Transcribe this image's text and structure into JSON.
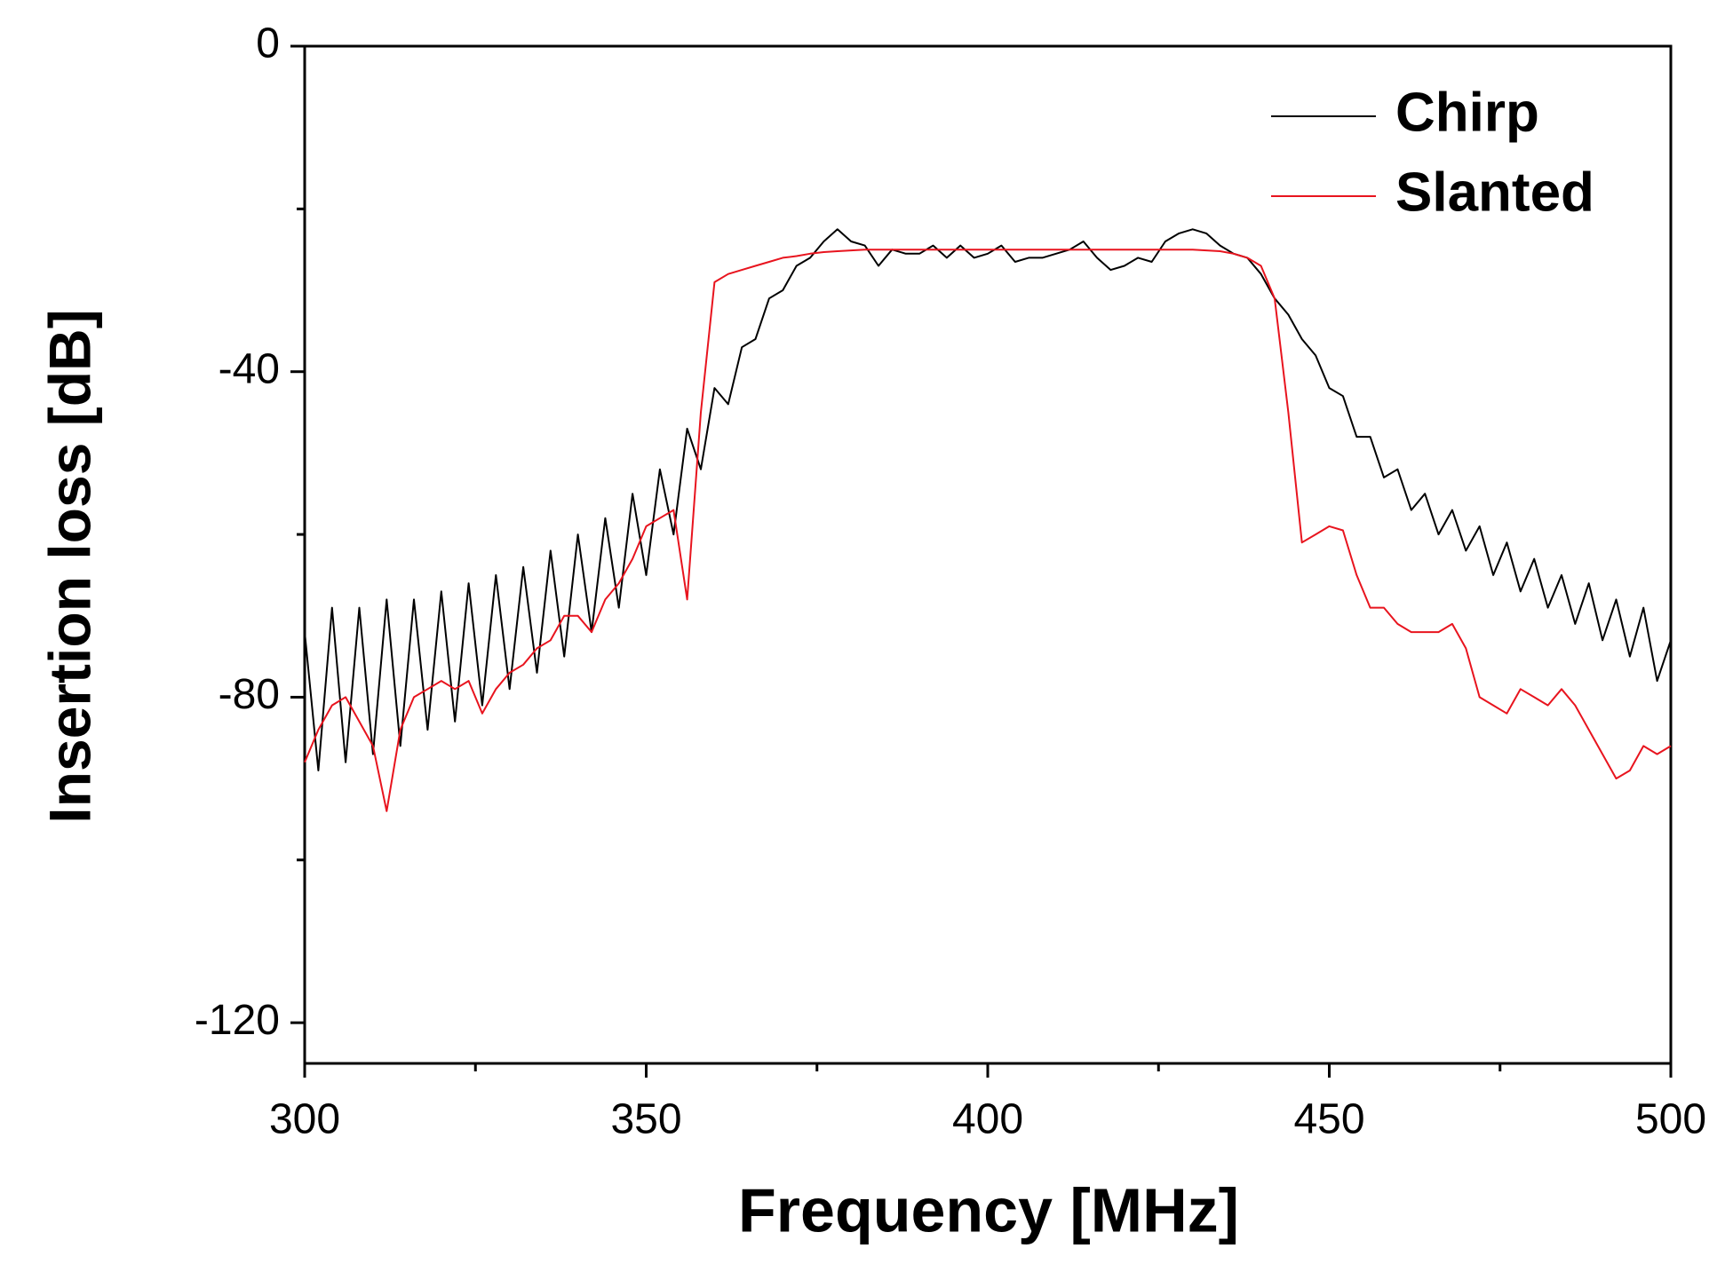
{
  "chart_data": {
    "type": "line",
    "xlabel": "Frequency [MHz]",
    "ylabel": "Insertion loss [dB]",
    "x": [
      300,
      302,
      304,
      306,
      308,
      310,
      312,
      314,
      316,
      318,
      320,
      322,
      324,
      326,
      328,
      330,
      332,
      334,
      336,
      338,
      340,
      342,
      344,
      346,
      348,
      350,
      352,
      354,
      356,
      358,
      360,
      362,
      364,
      366,
      368,
      370,
      372,
      374,
      376,
      378,
      380,
      382,
      384,
      386,
      388,
      390,
      392,
      394,
      396,
      398,
      400,
      402,
      404,
      406,
      408,
      410,
      412,
      414,
      416,
      418,
      420,
      422,
      424,
      426,
      428,
      430,
      432,
      434,
      436,
      438,
      440,
      442,
      444,
      446,
      448,
      450,
      452,
      454,
      456,
      458,
      460,
      462,
      464,
      466,
      468,
      470,
      472,
      474,
      476,
      478,
      480,
      482,
      484,
      486,
      488,
      490,
      492,
      494,
      496,
      498,
      500
    ],
    "series": [
      {
        "name": "Chirp",
        "color": "#000000",
        "values": [
          -72,
          -89,
          -69,
          -88,
          -69,
          -87,
          -68,
          -86,
          -68,
          -84,
          -67,
          -83,
          -66,
          -81,
          -65,
          -79,
          -64,
          -77,
          -62,
          -75,
          -60,
          -72,
          -58,
          -69,
          -55,
          -65,
          -52,
          -60,
          -47,
          -52,
          -42,
          -44,
          -37,
          -36,
          -31,
          -30,
          -27,
          -26,
          -24,
          -22.5,
          -24,
          -24.5,
          -27,
          -25,
          -25.5,
          -25.5,
          -24.5,
          -26,
          -24.5,
          -26,
          -25.5,
          -24.5,
          -26.5,
          -26,
          -26,
          -25.5,
          -25,
          -24,
          -26,
          -27.5,
          -27,
          -26,
          -26.5,
          -24,
          -23,
          -22.5,
          -23,
          -24.5,
          -25.5,
          -26,
          -28,
          -31,
          -33,
          -36,
          -38,
          -42,
          -43,
          -48,
          -48,
          -53,
          -52,
          -57,
          -55,
          -60,
          -57,
          -62,
          -59,
          -65,
          -61,
          -67,
          -63,
          -69,
          -65,
          -71,
          -66,
          -73,
          -68,
          -75,
          -69,
          -78,
          -73
        ]
      },
      {
        "name": "Slanted",
        "color": "#e8141e",
        "values": [
          -88,
          -84,
          -81,
          -80,
          -83,
          -86,
          -94,
          -84,
          -80,
          -79,
          -78,
          -79,
          -78,
          -82,
          -79,
          -77,
          -76,
          -74,
          -73,
          -70,
          -70,
          -72,
          -68,
          -66,
          -63,
          -59,
          -58,
          -57,
          -68,
          -45,
          -29,
          -28,
          -27.5,
          -27,
          -26.5,
          -26,
          -25.8,
          -25.5,
          -25.3,
          -25.2,
          -25.1,
          -25,
          -25,
          -25,
          -25,
          -25,
          -25,
          -25,
          -25,
          -25,
          -25,
          -25,
          -25,
          -25,
          -25,
          -25,
          -25,
          -25,
          -25,
          -25,
          -25,
          -25,
          -25,
          -25,
          -25,
          -25,
          -25.1,
          -25.2,
          -25.5,
          -26,
          -27,
          -31,
          -45,
          -61,
          -60,
          -59,
          -59.5,
          -65,
          -69,
          -69,
          -71,
          -72,
          -72,
          -72,
          -71,
          -74,
          -80,
          -81,
          -82,
          -79,
          -80,
          -81,
          -79,
          -81,
          -84,
          -87,
          -90,
          -89,
          -86,
          -87,
          -86
        ]
      }
    ],
    "xlim": [
      300,
      500
    ],
    "xticks": [
      300,
      350,
      400,
      450,
      500
    ],
    "xminor_ticks": [
      325,
      375,
      425,
      475
    ],
    "ylim": [
      -125,
      0
    ],
    "yticks": [
      -120,
      -80,
      -40,
      0
    ],
    "yminor_ticks": [
      -100,
      -60,
      -20
    ],
    "legend": "upper right"
  }
}
